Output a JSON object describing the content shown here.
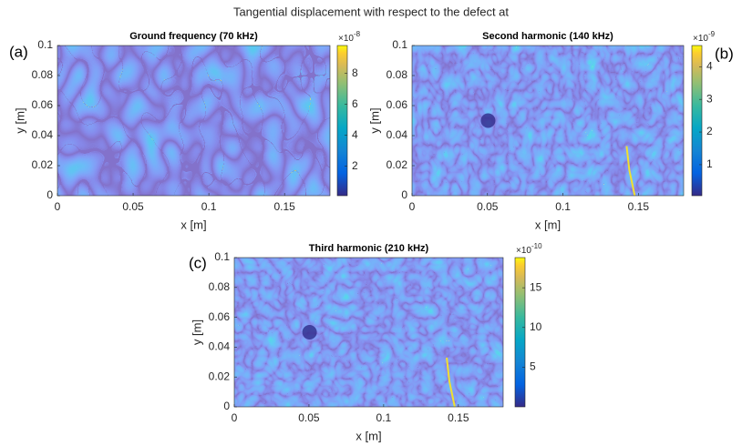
{
  "title": "Tangential displacement with respect to the defect at",
  "chart_data": [
    {
      "type": "heatmap",
      "panel_label": "(a)",
      "title": "Ground frequency (70 kHz)",
      "x_label": "x [m]",
      "y_label": "y [m]",
      "xlim": [
        0,
        0.18
      ],
      "ylim": [
        0,
        0.1
      ],
      "xticks": [
        0,
        0.05,
        0.1,
        0.15
      ],
      "yticks": [
        0,
        0.02,
        0.04,
        0.06,
        0.08,
        0.1
      ],
      "colormap": "parula",
      "clim": [
        0.1,
        9.8
      ],
      "cticks": [
        2,
        4,
        6,
        8
      ],
      "c_exponent_base": "×10",
      "c_exponent_power": "-8"
    },
    {
      "type": "heatmap",
      "panel_label": "(b)",
      "title": "Second harmonic (140 kHz)",
      "x_label": "x [m]",
      "y_label": "y [m]",
      "xlim": [
        0,
        0.18
      ],
      "ylim": [
        0,
        0.1
      ],
      "xticks": [
        0,
        0.05,
        0.1,
        0.15
      ],
      "yticks": [
        0,
        0.02,
        0.04,
        0.06,
        0.08,
        0.1
      ],
      "colormap": "parula",
      "clim": [
        0.05,
        4.65
      ],
      "cticks": [
        1,
        2,
        3,
        4
      ],
      "c_exponent_base": "×10",
      "c_exponent_power": "-9"
    },
    {
      "type": "heatmap",
      "panel_label": "(c)",
      "title": "Third harmonic (210 kHz)",
      "x_label": "x [m]",
      "y_label": "y [m]",
      "xlim": [
        0,
        0.18
      ],
      "ylim": [
        0,
        0.1
      ],
      "xticks": [
        0,
        0.05,
        0.1,
        0.15
      ],
      "yticks": [
        0,
        0.02,
        0.04,
        0.06,
        0.08,
        0.1
      ],
      "colormap": "parula",
      "clim": [
        0,
        18.8
      ],
      "cticks": [
        5,
        10,
        15
      ],
      "c_exponent_base": "×10",
      "c_exponent_power": "-10"
    }
  ]
}
